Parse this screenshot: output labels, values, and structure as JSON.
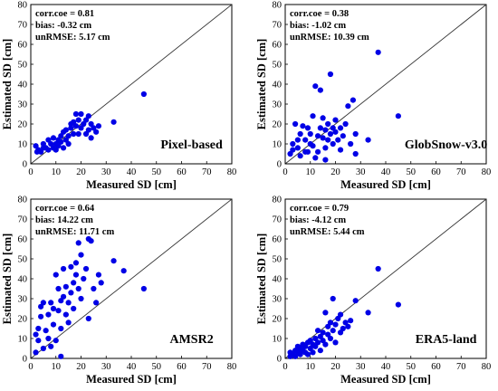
{
  "chart_data": [
    {
      "type": "scatter",
      "panel_label": "Pixel-based",
      "stats": [
        "corr.coe = 0.81",
        "bias: -0.32 cm",
        "unRMSE: 5.17 cm"
      ],
      "xlabel": "Measured SD [cm]",
      "ylabel": "Estimated SD [cm]",
      "xlim": [
        0,
        80
      ],
      "ylim": [
        0,
        80
      ],
      "xticks": [
        0,
        10,
        20,
        30,
        40,
        50,
        60,
        70,
        80
      ],
      "yticks": [
        0,
        10,
        20,
        30,
        40,
        50,
        60,
        70,
        80
      ],
      "reference_line": "1:1",
      "marker_color": "#0000e6",
      "points": [
        [
          2,
          9
        ],
        [
          2.5,
          6
        ],
        [
          3,
          7
        ],
        [
          4,
          6
        ],
        [
          5,
          8
        ],
        [
          5,
          10
        ],
        [
          6,
          8
        ],
        [
          7,
          7
        ],
        [
          7,
          12
        ],
        [
          8,
          10
        ],
        [
          9,
          8
        ],
        [
          9,
          13
        ],
        [
          10,
          10
        ],
        [
          10,
          7
        ],
        [
          11,
          9
        ],
        [
          11,
          12
        ],
        [
          12,
          14
        ],
        [
          12,
          11
        ],
        [
          13,
          8
        ],
        [
          13,
          16
        ],
        [
          14,
          12
        ],
        [
          14,
          17
        ],
        [
          15,
          10
        ],
        [
          15,
          14
        ],
        [
          16,
          18
        ],
        [
          16,
          20
        ],
        [
          17,
          15
        ],
        [
          17,
          21
        ],
        [
          18,
          19
        ],
        [
          18,
          25
        ],
        [
          19,
          22
        ],
        [
          19,
          15
        ],
        [
          20,
          25
        ],
        [
          20,
          18
        ],
        [
          21,
          20
        ],
        [
          22,
          15
        ],
        [
          22,
          22
        ],
        [
          23,
          24
        ],
        [
          23,
          17
        ],
        [
          24,
          20
        ],
        [
          24,
          13
        ],
        [
          25,
          18
        ],
        [
          26,
          16
        ],
        [
          27,
          19
        ],
        [
          33,
          21
        ],
        [
          45,
          35
        ]
      ]
    },
    {
      "type": "scatter",
      "panel_label": "GlobSnow-v3.0",
      "stats": [
        "corr.coe = 0.38",
        "bias: -1.02 cm",
        "unRMSE: 10.39 cm"
      ],
      "xlabel": "Measured SD [cm]",
      "ylabel": "Estimated SD [cm]",
      "xlim": [
        0,
        80
      ],
      "ylim": [
        0,
        80
      ],
      "xticks": [
        0,
        10,
        20,
        30,
        40,
        50,
        60,
        70,
        80
      ],
      "yticks": [
        0,
        10,
        20,
        30,
        40,
        50,
        60,
        70,
        80
      ],
      "reference_line": "1:1",
      "marker_color": "#0000e6",
      "points": [
        [
          2,
          5
        ],
        [
          3,
          10
        ],
        [
          4,
          20
        ],
        [
          5,
          8
        ],
        [
          6,
          15
        ],
        [
          6,
          4
        ],
        [
          7,
          19
        ],
        [
          8,
          12
        ],
        [
          8,
          6
        ],
        [
          9,
          18
        ],
        [
          10,
          10
        ],
        [
          10,
          15
        ],
        [
          11,
          24
        ],
        [
          11,
          9
        ],
        [
          12,
          39
        ],
        [
          12,
          3
        ],
        [
          13,
          14
        ],
        [
          13,
          6
        ],
        [
          14,
          37
        ],
        [
          14,
          18
        ],
        [
          15,
          13
        ],
        [
          15,
          23
        ],
        [
          16,
          17
        ],
        [
          16,
          8
        ],
        [
          16,
          2
        ],
        [
          17,
          12
        ],
        [
          17,
          20
        ],
        [
          18,
          15
        ],
        [
          18,
          45
        ],
        [
          19,
          10
        ],
        [
          19,
          18
        ],
        [
          20,
          16
        ],
        [
          20,
          22
        ],
        [
          21,
          12
        ],
        [
          22,
          7
        ],
        [
          22,
          18
        ],
        [
          23,
          14
        ],
        [
          24,
          20
        ],
        [
          25,
          29
        ],
        [
          26,
          10
        ],
        [
          27,
          32
        ],
        [
          28,
          15
        ],
        [
          28,
          5
        ],
        [
          33,
          12
        ],
        [
          37,
          56
        ],
        [
          45,
          24
        ],
        [
          3,
          7
        ],
        [
          5,
          12
        ],
        [
          9,
          6
        ]
      ]
    },
    {
      "type": "scatter",
      "panel_label": "AMSR2",
      "stats": [
        "corr.coe = 0.64",
        "bias: 14.22 cm",
        "unRMSE: 11.71 cm"
      ],
      "xlabel": "Measured SD [cm]",
      "ylabel": "Estimated SD [cm]",
      "xlim": [
        0,
        80
      ],
      "ylim": [
        0,
        80
      ],
      "xticks": [
        0,
        10,
        20,
        30,
        40,
        50,
        60,
        70,
        80
      ],
      "yticks": [
        0,
        10,
        20,
        30,
        40,
        50,
        60,
        70,
        80
      ],
      "reference_line": "1:1",
      "marker_color": "#0000e6",
      "points": [
        [
          2,
          3
        ],
        [
          2,
          12
        ],
        [
          3,
          9
        ],
        [
          3,
          15
        ],
        [
          4,
          26
        ],
        [
          4,
          21
        ],
        [
          5,
          5
        ],
        [
          5,
          28
        ],
        [
          6,
          14
        ],
        [
          7,
          22
        ],
        [
          7,
          10
        ],
        [
          8,
          28
        ],
        [
          8,
          6
        ],
        [
          9,
          17
        ],
        [
          9,
          25
        ],
        [
          10,
          42
        ],
        [
          10,
          9
        ],
        [
          11,
          24
        ],
        [
          11,
          35
        ],
        [
          12,
          29
        ],
        [
          12,
          15
        ],
        [
          12,
          1
        ],
        [
          13,
          31
        ],
        [
          13,
          45
        ],
        [
          14,
          22
        ],
        [
          14,
          36
        ],
        [
          15,
          18
        ],
        [
          15,
          28
        ],
        [
          16,
          33
        ],
        [
          16,
          46
        ],
        [
          17,
          38
        ],
        [
          17,
          25
        ],
        [
          18,
          48
        ],
        [
          18,
          42
        ],
        [
          19,
          58
        ],
        [
          19,
          35
        ],
        [
          20,
          52
        ],
        [
          20,
          30
        ],
        [
          21,
          40
        ],
        [
          22,
          45
        ],
        [
          23,
          60
        ],
        [
          23,
          20
        ],
        [
          24,
          59
        ],
        [
          25,
          35
        ],
        [
          26,
          28
        ],
        [
          27,
          42
        ],
        [
          28,
          38
        ],
        [
          33,
          49
        ],
        [
          37,
          44
        ],
        [
          45,
          35
        ]
      ]
    },
    {
      "type": "scatter",
      "panel_label": "ERA5-land",
      "stats": [
        "corr.coe = 0.79",
        "bias: -4.12 cm",
        "unRMSE: 5.44 cm"
      ],
      "xlabel": "Measured SD [cm]",
      "ylabel": "Estimated SD [cm]",
      "xlim": [
        0,
        80
      ],
      "ylim": [
        0,
        80
      ],
      "xticks": [
        0,
        10,
        20,
        30,
        40,
        50,
        60,
        70,
        80
      ],
      "yticks": [
        0,
        10,
        20,
        30,
        40,
        50,
        60,
        70,
        80
      ],
      "reference_line": "1:1",
      "marker_color": "#0000e6",
      "points": [
        [
          2,
          1
        ],
        [
          2,
          3
        ],
        [
          3,
          2
        ],
        [
          4,
          4
        ],
        [
          4,
          1
        ],
        [
          5,
          3
        ],
        [
          5,
          6
        ],
        [
          6,
          2
        ],
        [
          6,
          5
        ],
        [
          7,
          4
        ],
        [
          7,
          7
        ],
        [
          8,
          3
        ],
        [
          8,
          6
        ],
        [
          9,
          2
        ],
        [
          9,
          8
        ],
        [
          10,
          5
        ],
        [
          10,
          9
        ],
        [
          11,
          7
        ],
        [
          11,
          3
        ],
        [
          12,
          10
        ],
        [
          12,
          6
        ],
        [
          13,
          14
        ],
        [
          13,
          8
        ],
        [
          14,
          11
        ],
        [
          14,
          4
        ],
        [
          15,
          9
        ],
        [
          15,
          13
        ],
        [
          16,
          23
        ],
        [
          16,
          7
        ],
        [
          17,
          12
        ],
        [
          17,
          16
        ],
        [
          18,
          18
        ],
        [
          18,
          10
        ],
        [
          19,
          30
        ],
        [
          19,
          14
        ],
        [
          20,
          8
        ],
        [
          20,
          17
        ],
        [
          21,
          20
        ],
        [
          22,
          13
        ],
        [
          22,
          22
        ],
        [
          23,
          15
        ],
        [
          24,
          18
        ],
        [
          25,
          16
        ],
        [
          26,
          19
        ],
        [
          28,
          29
        ],
        [
          33,
          23
        ],
        [
          37,
          45
        ],
        [
          45,
          27
        ]
      ]
    }
  ]
}
